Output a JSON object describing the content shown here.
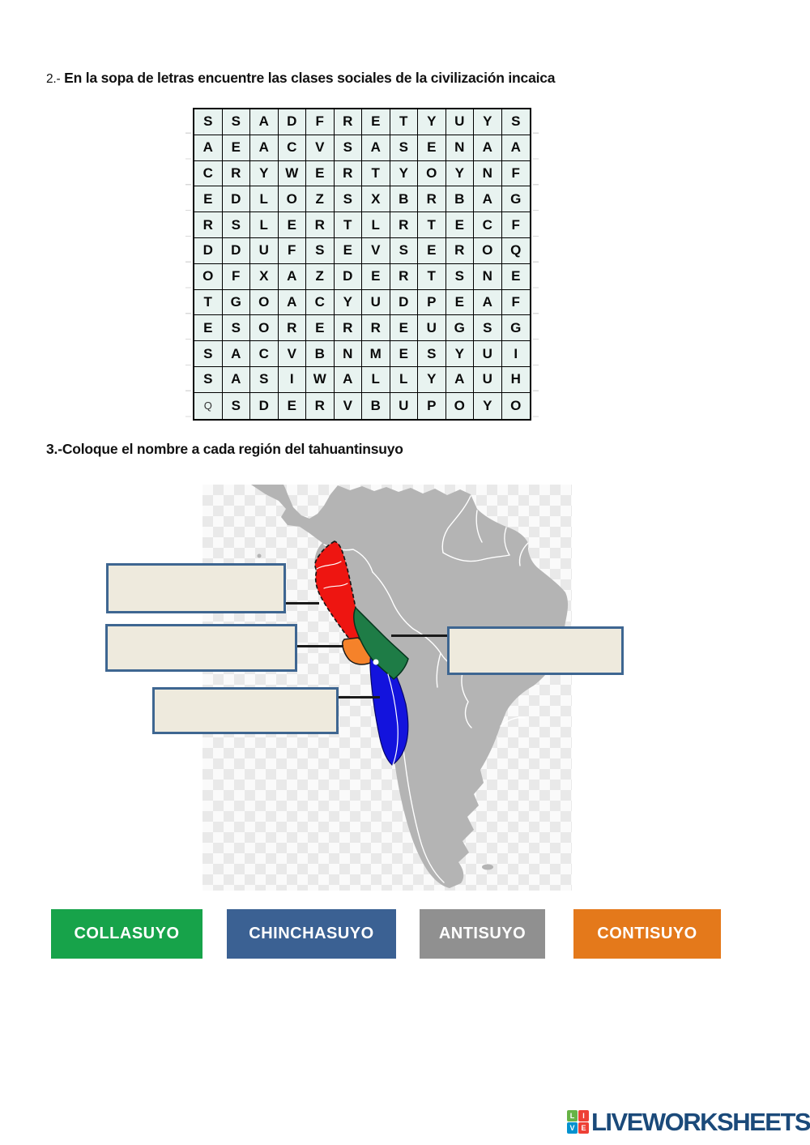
{
  "question2": {
    "prefix": "2.-",
    "text": "En la sopa de letras encuentre las clases sociales de la civilización incaica"
  },
  "wordsearch": {
    "rows": [
      [
        "S",
        "S",
        "A",
        "D",
        "F",
        "R",
        "E",
        "T",
        "Y",
        "U",
        "Y",
        "S"
      ],
      [
        "A",
        "E",
        "A",
        "C",
        "V",
        "S",
        "A",
        "S",
        "E",
        "N",
        "A",
        "A"
      ],
      [
        "C",
        "R",
        "Y",
        "W",
        "E",
        "R",
        "T",
        "Y",
        "O",
        "Y",
        "N",
        "F"
      ],
      [
        "E",
        "D",
        "L",
        "O",
        "Z",
        "S",
        "X",
        "B",
        "R",
        "B",
        "A",
        "G"
      ],
      [
        "R",
        "S",
        "L",
        "E",
        "R",
        "T",
        "L",
        "R",
        "T",
        "E",
        "C",
        "F"
      ],
      [
        "D",
        "D",
        "U",
        "F",
        "S",
        "E",
        "V",
        "S",
        "E",
        "R",
        "O",
        "Q"
      ],
      [
        "O",
        "F",
        "X",
        "A",
        "Z",
        "D",
        "E",
        "R",
        "T",
        "S",
        "N",
        "E"
      ],
      [
        "T",
        "G",
        "O",
        "A",
        "C",
        "Y",
        "U",
        "D",
        "P",
        "E",
        "A",
        "F"
      ],
      [
        "E",
        "S",
        "O",
        "R",
        "E",
        "R",
        "R",
        "E",
        "U",
        "G",
        "S",
        "G"
      ],
      [
        "S",
        "A",
        "C",
        "V",
        "B",
        "N",
        "M",
        "E",
        "S",
        "Y",
        "U",
        "I"
      ],
      [
        "S",
        "A",
        "S",
        "I",
        "W",
        "A",
        "L",
        "L",
        "Y",
        "A",
        "U",
        "H"
      ],
      [
        "Q",
        "S",
        "D",
        "E",
        "R",
        "V",
        "B",
        "U",
        "P",
        "O",
        "Y",
        "O"
      ]
    ],
    "muted_cell": {
      "row": 11,
      "col": 0
    }
  },
  "question3": {
    "text": "3.-Coloque el nombre a cada región del tahuantinsuyo"
  },
  "map": {
    "land_color": "#b4b4b4",
    "border_color": "#ffffff",
    "region_colors": {
      "red_north": "#ee1511",
      "green_east": "#1e7c46",
      "orange_southwest": "#f5822a",
      "blue_south": "#1313dd"
    },
    "label_boxes": [
      {
        "value": ""
      },
      {
        "value": ""
      },
      {
        "value": ""
      },
      {
        "value": ""
      }
    ]
  },
  "answers": [
    {
      "label": "COLLASUYO",
      "color": "#17a34a"
    },
    {
      "label": "CHINCHASUYO",
      "color": "#3b6193"
    },
    {
      "label": "ANTISUYO",
      "color": "#909090"
    },
    {
      "label": "CONTISUYO",
      "color": "#e4791b"
    }
  ],
  "footer": {
    "brand": "LIVEWORKSHEETS",
    "brand_color": "#1b4a7a",
    "icon_letters": [
      "L",
      "I",
      "V",
      "E"
    ],
    "icon_colors": [
      "#67b346",
      "#ee4035",
      "#0392cf",
      "#ee4035"
    ]
  }
}
